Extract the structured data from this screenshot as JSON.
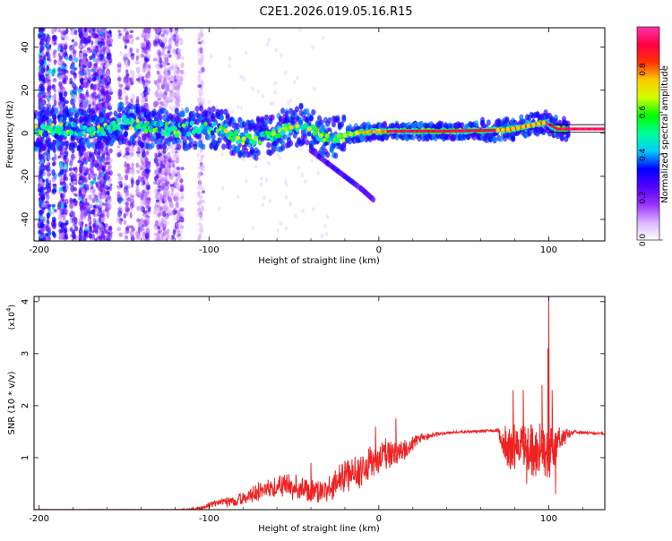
{
  "figure": {
    "title": "C2E1.2026.019.05.16.R15"
  },
  "chart_data": [
    {
      "type": "heatmap",
      "xlabel": "Height of straight line (km)",
      "ylabel": "Frequency (Hz)",
      "xlim": [
        -203,
        133
      ],
      "ylim": [
        -50,
        49
      ],
      "xticks": [
        -200,
        -100,
        0,
        100
      ],
      "yticks": [
        -40,
        -20,
        0,
        20,
        40
      ],
      "colorbar": {
        "label": "Normalized spectral amplitude",
        "range": [
          0,
          1
        ],
        "ticks": [
          "0.0",
          "0.2",
          "0.4",
          "0.6",
          "0.8"
        ],
        "colors": [
          "#ffffff",
          "#d9b3ff",
          "#9933ff",
          "#5500ff",
          "#0000ff",
          "#00ccff",
          "#00ff99",
          "#00ff00",
          "#ccff00",
          "#ffcc00",
          "#ff3300",
          "#ff0044",
          "#ff33aa"
        ]
      },
      "ridge": [
        {
          "x": -200,
          "y": 1.5
        },
        {
          "x": -180,
          "y": 2.0
        },
        {
          "x": -160,
          "y": 1.5
        },
        {
          "x": -150,
          "y": 5.0
        },
        {
          "x": -140,
          "y": 3.0
        },
        {
          "x": -120,
          "y": 1.5
        },
        {
          "x": -100,
          "y": 3.0
        },
        {
          "x": -90,
          "y": 1.0
        },
        {
          "x": -85,
          "y": -2.0
        },
        {
          "x": -75,
          "y": -3.0
        },
        {
          "x": -65,
          "y": -1.0
        },
        {
          "x": -55,
          "y": 2.0
        },
        {
          "x": -45,
          "y": 4.0
        },
        {
          "x": -35,
          "y": -1.0
        },
        {
          "x": -25,
          "y": -1.5
        },
        {
          "x": -10,
          "y": 0.5
        },
        {
          "x": 10,
          "y": 1.0
        },
        {
          "x": 40,
          "y": 1.0
        },
        {
          "x": 75,
          "y": 1.5
        },
        {
          "x": 98,
          "y": 5.0
        },
        {
          "x": 105,
          "y": 2.0
        },
        {
          "x": 133,
          "y": 2.0
        }
      ],
      "branch": [
        {
          "x": -40,
          "y": -8
        },
        {
          "x": -30,
          "y": -14
        },
        {
          "x": -20,
          "y": -20
        },
        {
          "x": -10,
          "y": -26
        },
        {
          "x": -3,
          "y": -31
        }
      ],
      "trend_line_y": 0.5
    },
    {
      "type": "line",
      "xlabel": "Height of straight line (km)",
      "ylabel": "SNR (10 * v/v)",
      "y_multiplier": "(x10",
      "y_multiplier_exp": "4",
      "y_multiplier_close": ")",
      "xlim": [
        -203,
        133
      ],
      "ylim": [
        0,
        4.1
      ],
      "xticks": [
        -200,
        -100,
        0,
        100
      ],
      "yticks": [
        1,
        2,
        3,
        4
      ],
      "series": [
        {
          "color": "#ee2222",
          "envelope": [
            {
              "x": -203,
              "y": 0.0
            },
            {
              "x": -120,
              "y": 0.0
            },
            {
              "x": -105,
              "y": 0.05
            },
            {
              "x": -95,
              "y": 0.2
            },
            {
              "x": -85,
              "y": 0.25
            },
            {
              "x": -75,
              "y": 0.4
            },
            {
              "x": -65,
              "y": 0.6
            },
            {
              "x": -55,
              "y": 0.7
            },
            {
              "x": -45,
              "y": 0.6
            },
            {
              "x": -35,
              "y": 0.5
            },
            {
              "x": -28,
              "y": 0.6
            },
            {
              "x": -20,
              "y": 0.9
            },
            {
              "x": -10,
              "y": 1.1
            },
            {
              "x": 0,
              "y": 1.3
            },
            {
              "x": 8,
              "y": 1.3
            },
            {
              "x": 15,
              "y": 1.3
            },
            {
              "x": 25,
              "y": 1.45
            },
            {
              "x": 40,
              "y": 1.5
            },
            {
              "x": 70,
              "y": 1.55
            },
            {
              "x": 75,
              "y": 1.55
            },
            {
              "x": 85,
              "y": 1.55
            },
            {
              "x": 95,
              "y": 1.55
            },
            {
              "x": 100,
              "y": 1.6
            },
            {
              "x": 106,
              "y": 1.55
            },
            {
              "x": 115,
              "y": 1.52
            },
            {
              "x": 133,
              "y": 1.48
            }
          ],
          "noise": [
            {
              "x": -203,
              "y": 0.01
            },
            {
              "x": -120,
              "y": 0.02
            },
            {
              "x": -105,
              "y": 0.04
            },
            {
              "x": -95,
              "y": 0.1
            },
            {
              "x": -85,
              "y": 0.15
            },
            {
              "x": -75,
              "y": 0.2
            },
            {
              "x": -65,
              "y": 0.28
            },
            {
              "x": -55,
              "y": 0.35
            },
            {
              "x": -45,
              "y": 0.28
            },
            {
              "x": -35,
              "y": 0.28
            },
            {
              "x": -28,
              "y": 0.35
            },
            {
              "x": -20,
              "y": 0.4
            },
            {
              "x": -10,
              "y": 0.45
            },
            {
              "x": 0,
              "y": 0.4
            },
            {
              "x": 8,
              "y": 0.35
            },
            {
              "x": 15,
              "y": 0.25
            },
            {
              "x": 25,
              "y": 0.1
            },
            {
              "x": 40,
              "y": 0.03
            },
            {
              "x": 70,
              "y": 0.04
            },
            {
              "x": 75,
              "y": 0.55
            },
            {
              "x": 85,
              "y": 0.55
            },
            {
              "x": 95,
              "y": 0.7
            },
            {
              "x": 100,
              "y": 0.8
            },
            {
              "x": 106,
              "y": 0.3
            },
            {
              "x": 115,
              "y": 0.04
            },
            {
              "x": 133,
              "y": 0.03
            }
          ],
          "spikes": [
            {
              "x": 100,
              "y": 4.1
            },
            {
              "x": 99.5,
              "y": 3.1
            },
            {
              "x": 85,
              "y": 2.3
            },
            {
              "x": 79,
              "y": 2.3
            },
            {
              "x": 96,
              "y": 2.4
            },
            {
              "x": 102,
              "y": 2.3
            },
            {
              "x": 10,
              "y": 1.75
            },
            {
              "x": -2,
              "y": 1.6
            },
            {
              "x": -40,
              "y": 0.9
            },
            {
              "x": 104,
              "y": 0.3
            },
            {
              "x": 87,
              "y": 0.5
            }
          ]
        }
      ]
    }
  ]
}
